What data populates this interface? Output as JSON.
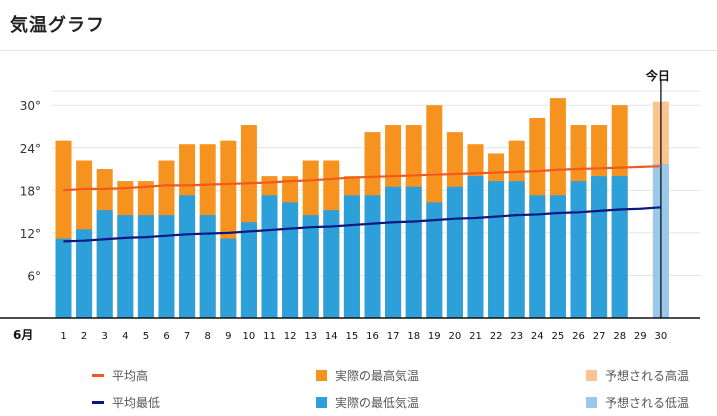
{
  "page": {
    "title": "気温グラフ"
  },
  "chart_data": {
    "type": "bar",
    "month_label": "6月",
    "today_label": "今日",
    "x": [
      1,
      2,
      3,
      4,
      5,
      6,
      7,
      8,
      9,
      10,
      11,
      12,
      13,
      14,
      15,
      16,
      17,
      18,
      19,
      20,
      21,
      22,
      23,
      24,
      25,
      26,
      27,
      28,
      29,
      30
    ],
    "y_ticks": [
      6,
      12,
      18,
      24,
      30
    ],
    "y_tick_labels": [
      "6°",
      "12°",
      "18°",
      "24°",
      "30°"
    ],
    "ylim": [
      0,
      32
    ],
    "grid": true,
    "legend_position": "bottom",
    "series": [
      {
        "name": "実際の最高気温",
        "kind": "bar",
        "color": "#f6931e",
        "values": [
          25,
          22.2,
          21,
          19.3,
          19.3,
          22.2,
          24.5,
          24.5,
          25,
          27.2,
          20,
          20,
          22.2,
          22.2,
          20,
          26.2,
          27.2,
          27.2,
          30,
          26.2,
          24.5,
          23.2,
          25,
          28.2,
          31,
          27.2,
          27.2,
          30,
          null,
          null
        ]
      },
      {
        "name": "実際の最低気温",
        "kind": "bar",
        "color": "#2d9fd9",
        "values": [
          11.2,
          12.5,
          15.2,
          14.5,
          14.5,
          14.5,
          17.3,
          14.5,
          11.2,
          13.5,
          17.3,
          16.3,
          14.5,
          15.2,
          17.3,
          17.3,
          18.5,
          18.5,
          16.3,
          18.5,
          20,
          19.3,
          19.3,
          17.3,
          17.3,
          19.3,
          20,
          20,
          null,
          null
        ]
      },
      {
        "name": "予想される高温",
        "kind": "bar",
        "color": "#f9c490",
        "values": [
          null,
          null,
          null,
          null,
          null,
          null,
          null,
          null,
          null,
          null,
          null,
          null,
          null,
          null,
          null,
          null,
          null,
          null,
          null,
          null,
          null,
          null,
          null,
          null,
          null,
          null,
          null,
          null,
          null,
          30.5
        ]
      },
      {
        "name": "予想される低温",
        "kind": "bar",
        "color": "#99c8ea",
        "values": [
          null,
          null,
          null,
          null,
          null,
          null,
          null,
          null,
          null,
          null,
          null,
          null,
          null,
          null,
          null,
          null,
          null,
          null,
          null,
          null,
          null,
          null,
          null,
          null,
          null,
          null,
          null,
          null,
          null,
          21.7
        ]
      },
      {
        "name": "平均高",
        "kind": "line",
        "color": "#f05a22",
        "values": [
          18,
          18.2,
          18.2,
          18.3,
          18.5,
          18.7,
          18.7,
          18.8,
          18.9,
          19,
          19.1,
          19.3,
          19.4,
          19.6,
          19.8,
          19.9,
          20,
          20.1,
          20.2,
          20.3,
          20.4,
          20.5,
          20.6,
          20.7,
          20.9,
          21,
          21.1,
          21.2,
          21.3,
          21.4
        ]
      },
      {
        "name": "平均最低",
        "kind": "line",
        "color": "#0a1780",
        "values": [
          10.8,
          10.9,
          11.1,
          11.3,
          11.4,
          11.6,
          11.8,
          11.9,
          12,
          12.2,
          12.4,
          12.6,
          12.8,
          12.9,
          13.1,
          13.3,
          13.5,
          13.6,
          13.8,
          14,
          14.1,
          14.3,
          14.5,
          14.6,
          14.8,
          14.9,
          15.1,
          15.3,
          15.4,
          15.6
        ]
      }
    ],
    "legend": [
      {
        "label": "平均高",
        "marker": "line",
        "color": "#f05a22"
      },
      {
        "label": "実際の最高気温",
        "marker": "box",
        "color": "#f6931e"
      },
      {
        "label": "予想される高温",
        "marker": "box",
        "color": "#f9c490"
      },
      {
        "label": "平均最低",
        "marker": "line",
        "color": "#0a1780"
      },
      {
        "label": "実際の最低気温",
        "marker": "box",
        "color": "#2d9fd9"
      },
      {
        "label": "予想される低温",
        "marker": "box",
        "color": "#99c8ea"
      }
    ]
  }
}
